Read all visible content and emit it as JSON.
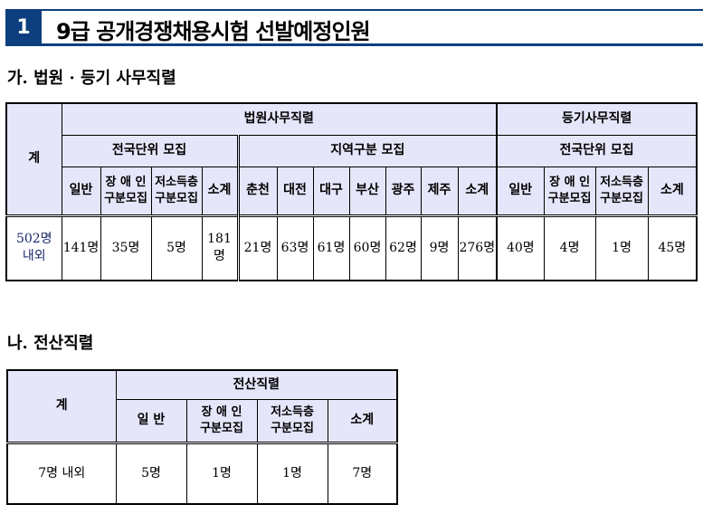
{
  "header": {
    "number": "1",
    "title": "9급 공개경쟁채용시험 선발예정인원"
  },
  "section_a": {
    "title": "가. 법원 · 등기 사무직렬",
    "total_label": "계",
    "court_group": "법원사무직렬",
    "registry_group": "등기사무직렬",
    "nationwide": "전국단위 모집",
    "regional": "지역구분 모집",
    "court_cols": [
      "일반",
      "장 애 인\n구분모집",
      "저소득층\n구분모집",
      "소계"
    ],
    "region_cols": [
      "춘천",
      "대전",
      "대구",
      "부산",
      "광주",
      "제주",
      "소계"
    ],
    "registry_cols": [
      "일반",
      "장 애 인\n구분모집",
      "저소득층\n구분모집",
      "소계"
    ],
    "total_value": "502명\n내외",
    "court_values": [
      "141명",
      "35명",
      "5명",
      "181명"
    ],
    "region_values": [
      "21명",
      "63명",
      "61명",
      "60명",
      "62명",
      "9명",
      "276명"
    ],
    "registry_values": [
      "40명",
      "4명",
      "1명",
      "45명"
    ]
  },
  "section_b": {
    "title": "나. 전산직렬",
    "total_label": "계",
    "group": "전산직렬",
    "cols": [
      "일  반",
      "장 애 인\n구분모집",
      "저소득층\n구분모집",
      "소계"
    ],
    "total_value": "7명 내외",
    "values": [
      "5명",
      "1명",
      "1명",
      "7명"
    ]
  },
  "colors": {
    "header_blue": "#0d3f7f",
    "header_cell_bg": "#e6e6fa"
  }
}
